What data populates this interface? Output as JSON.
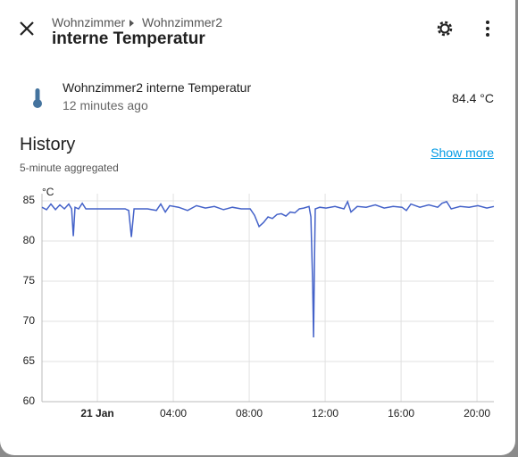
{
  "header": {
    "breadcrumb": [
      "Wohnzimmer",
      "Wohnzimmer2"
    ],
    "title": "interne Temperatur"
  },
  "entity": {
    "name": "Wohnzimmer2 interne Temperatur",
    "updated": "12 minutes ago",
    "state": "84.4 °C"
  },
  "history": {
    "title": "History",
    "link": "Show more",
    "subtitle": "5-minute aggregated"
  },
  "chart_data": {
    "type": "line",
    "y_label": "°C",
    "x": [
      -2.92,
      -2.68,
      -2.45,
      -2.21,
      -1.98,
      -1.74,
      -1.51,
      -1.36,
      -1.27,
      -1.18,
      -0.99,
      -0.8,
      -0.61,
      -0.42,
      0.05,
      0.52,
      0.99,
      1.46,
      1.65,
      1.79,
      1.93,
      2.16,
      2.64,
      3.11,
      3.34,
      3.58,
      3.81,
      4.28,
      4.75,
      5.22,
      5.69,
      6.16,
      6.64,
      7.11,
      7.58,
      8.05,
      8.28,
      8.52,
      8.75,
      8.99,
      9.22,
      9.46,
      9.69,
      9.93,
      10.16,
      10.4,
      10.64,
      10.87,
      11.15,
      11.25,
      11.34,
      11.39,
      11.44,
      11.48,
      11.72,
      12.05,
      12.52,
      12.99,
      13.18,
      13.36,
      13.69,
      14.16,
      14.64,
      15.11,
      15.58,
      16.05,
      16.28,
      16.52,
      16.99,
      17.46,
      17.93,
      18.16,
      18.4,
      18.64,
      19.11,
      19.58,
      20.05,
      20.52,
      20.89
    ],
    "series": [
      {
        "color": "#4462c9",
        "values": [
          84.2,
          83.9,
          84.6,
          83.9,
          84.5,
          84.0,
          84.6,
          84.0,
          80.6,
          84.2,
          84.0,
          84.7,
          84.0,
          84.0,
          84.0,
          84.0,
          84.0,
          84.0,
          83.8,
          80.5,
          84.0,
          84.0,
          84.0,
          83.8,
          84.6,
          83.6,
          84.4,
          84.2,
          83.8,
          84.4,
          84.1,
          84.3,
          83.9,
          84.2,
          84.0,
          84.0,
          83.2,
          81.8,
          82.3,
          83.0,
          82.8,
          83.3,
          83.4,
          83.1,
          83.6,
          83.5,
          84.0,
          84.1,
          84.3,
          83.0,
          75.0,
          68.0,
          78.0,
          84.0,
          84.2,
          84.1,
          84.3,
          84.0,
          84.9,
          83.6,
          84.3,
          84.2,
          84.5,
          84.1,
          84.3,
          84.2,
          83.8,
          84.6,
          84.2,
          84.5,
          84.2,
          84.7,
          84.9,
          84.0,
          84.3,
          84.2,
          84.4,
          84.1,
          84.3
        ]
      }
    ],
    "xlim": [
      -2.92,
      20.89
    ],
    "xticks": [
      {
        "value": 0,
        "label": "21 Jan"
      },
      {
        "value": 4,
        "label": "04:00"
      },
      {
        "value": 8,
        "label": "08:00"
      },
      {
        "value": 12,
        "label": "12:00"
      },
      {
        "value": 16,
        "label": "16:00"
      },
      {
        "value": 20,
        "label": "20:00"
      }
    ],
    "ylim": [
      60,
      85
    ],
    "yticks": [
      60,
      65,
      70,
      75,
      80,
      85
    ],
    "grid": true
  }
}
